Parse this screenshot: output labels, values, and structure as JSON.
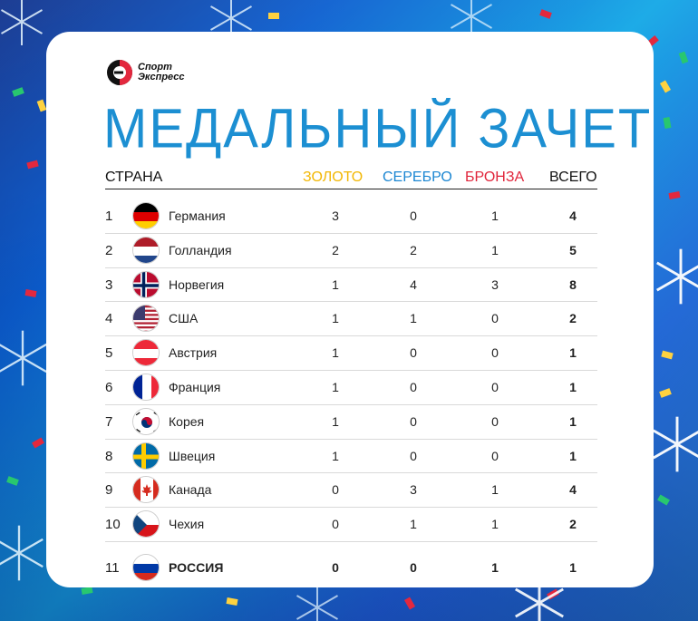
{
  "brand": {
    "line1": "Спорт",
    "line2": "Экспресс"
  },
  "title": "МЕДАЛЬНЫЙ ЗАЧЕТ",
  "headers": {
    "country": "СТРАНА",
    "gold": "ЗОЛОТО",
    "silver": "СЕРЕБРО",
    "bronze": "БРОНЗА",
    "total": "ВСЕГО"
  },
  "colors": {
    "title": "#1c8fd2",
    "gold": "#f2b705",
    "silver": "#1b86d2",
    "bronze": "#e0243a"
  },
  "rows": [
    {
      "rank": "1",
      "country": "Германия",
      "flag": "germany-flag-icon",
      "gold": "3",
      "silver": "0",
      "bronze": "1",
      "total": "4"
    },
    {
      "rank": "2",
      "country": "Голландия",
      "flag": "netherlands-flag-icon",
      "gold": "2",
      "silver": "2",
      "bronze": "1",
      "total": "5"
    },
    {
      "rank": "3",
      "country": "Норвегия",
      "flag": "norway-flag-icon",
      "gold": "1",
      "silver": "4",
      "bronze": "3",
      "total": "8"
    },
    {
      "rank": "4",
      "country": "США",
      "flag": "usa-flag-icon",
      "gold": "1",
      "silver": "1",
      "bronze": "0",
      "total": "2"
    },
    {
      "rank": "5",
      "country": "Австрия",
      "flag": "austria-flag-icon",
      "gold": "1",
      "silver": "0",
      "bronze": "0",
      "total": "1"
    },
    {
      "rank": "6",
      "country": "Франция",
      "flag": "france-flag-icon",
      "gold": "1",
      "silver": "0",
      "bronze": "0",
      "total": "1"
    },
    {
      "rank": "7",
      "country": "Корея",
      "flag": "korea-flag-icon",
      "gold": "1",
      "silver": "0",
      "bronze": "0",
      "total": "1"
    },
    {
      "rank": "8",
      "country": "Швеция",
      "flag": "sweden-flag-icon",
      "gold": "1",
      "silver": "0",
      "bronze": "0",
      "total": "1"
    },
    {
      "rank": "9",
      "country": "Канада",
      "flag": "canada-flag-icon",
      "gold": "0",
      "silver": "3",
      "bronze": "1",
      "total": "4"
    },
    {
      "rank": "10",
      "country": "Чехия",
      "flag": "czech-flag-icon",
      "gold": "0",
      "silver": "1",
      "bronze": "1",
      "total": "2"
    },
    {
      "rank": "11",
      "country": "РОССИЯ",
      "flag": "russia-flag-icon",
      "gold": "0",
      "silver": "0",
      "bronze": "1",
      "total": "1"
    }
  ]
}
